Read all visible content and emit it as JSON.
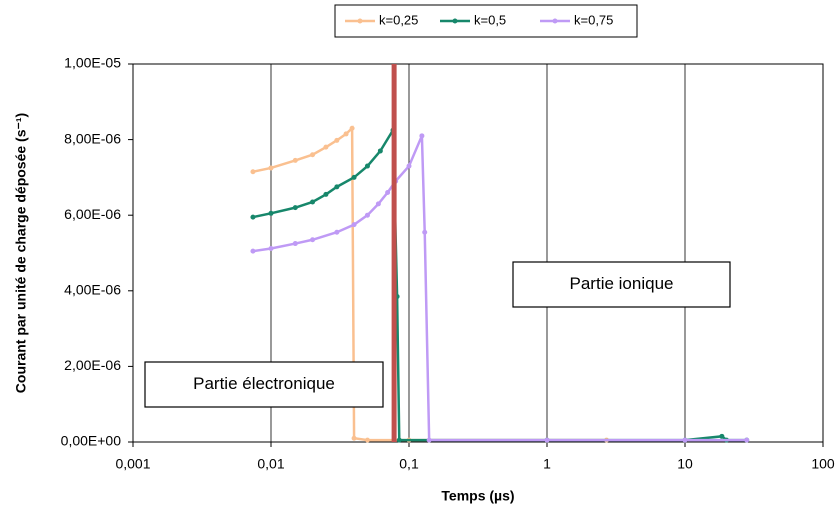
{
  "chart_data": {
    "type": "line",
    "x_label": "Temps (µs)",
    "y_label": "Courant par unité de charge déposée (s⁻¹)",
    "xscale": "log",
    "xlim": [
      0.001,
      100
    ],
    "xticks": [
      {
        "value": 0.001,
        "label": "0,001"
      },
      {
        "value": 0.01,
        "label": "0,01"
      },
      {
        "value": 0.1,
        "label": "0,1"
      },
      1,
      10,
      100
    ],
    "ylim": [
      0,
      1e-05
    ],
    "yticks": [
      {
        "value": 0,
        "label": "0,00E+00"
      },
      {
        "value": 2e-06,
        "label": "2,00E-06"
      },
      {
        "value": 4e-06,
        "label": "4,00E-06"
      },
      {
        "value": 6e-06,
        "label": "6,00E-06"
      },
      {
        "value": 8e-06,
        "label": "8,00E-06"
      },
      {
        "value": 1e-05,
        "label": "1,00E-05"
      }
    ],
    "xgrid": true,
    "legend": "top",
    "series": [
      {
        "name": "k=0,25",
        "color": "#fac090",
        "x": [
          0.0074,
          0.01,
          0.015,
          0.02,
          0.025,
          0.03,
          0.035,
          0.0387,
          0.04,
          0.05,
          0.1,
          1,
          2.7
        ],
        "values": [
          7.15e-06,
          7.25e-06,
          7.45e-06,
          7.6e-06,
          7.8e-06,
          7.98e-06,
          8.15e-06,
          8.3e-06,
          1e-07,
          5e-08,
          5e-08,
          5e-08,
          5e-08
        ]
      },
      {
        "name": "k=0,5",
        "color": "#17876b",
        "x": [
          0.0074,
          0.01,
          0.015,
          0.02,
          0.025,
          0.03,
          0.04,
          0.05,
          0.062,
          0.0766,
          0.082,
          0.085,
          1,
          10,
          18.5,
          20,
          28
        ],
        "values": [
          5.95e-06,
          6.05e-06,
          6.2e-06,
          6.35e-06,
          6.55e-06,
          6.75e-06,
          7e-06,
          7.3e-06,
          7.7e-06,
          8.25e-06,
          3.85e-06,
          5e-08,
          5e-08,
          5e-08,
          1.5e-07,
          5e-08,
          5e-08
        ]
      },
      {
        "name": "k=0,75",
        "color": "#bf9af5",
        "x": [
          0.0074,
          0.01,
          0.015,
          0.02,
          0.03,
          0.04,
          0.05,
          0.06,
          0.07,
          0.08,
          0.1,
          0.124,
          0.13,
          0.14,
          1,
          10,
          28
        ],
        "values": [
          5.05e-06,
          5.12e-06,
          5.25e-06,
          5.35e-06,
          5.55e-06,
          5.75e-06,
          6e-06,
          6.3e-06,
          6.6e-06,
          6.9e-06,
          7.3e-06,
          8.1e-06,
          5.55e-06,
          5e-08,
          5e-08,
          5e-08,
          5e-08
        ]
      }
    ],
    "vertical_line": {
      "x": 0.078,
      "color": "#c0504d"
    },
    "annotations": [
      "Partie électronique",
      "Partie ionique"
    ]
  }
}
